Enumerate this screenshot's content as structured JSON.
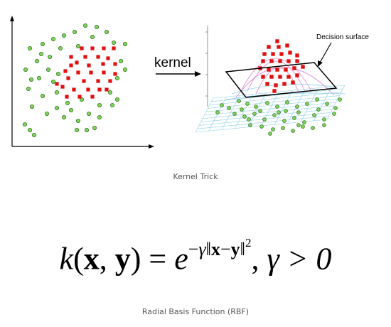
{
  "labels": {
    "kernel": "kernel",
    "decision_surface": "Decision surface"
  },
  "captions": {
    "kernel_trick": "Kernel Trick",
    "rbf": "Radial Basis Function (RBF)"
  },
  "formula": {
    "k": "k",
    "x": "x",
    "y": "y",
    "e": "e",
    "gamma": "γ",
    "exponent_power": "2",
    "condition": "γ > 0"
  },
  "colors": {
    "green_points": "#7ed957",
    "red_points": "#e01010",
    "surface_mesh": "#8fd0e8",
    "dome_mesh": "#e080d0",
    "axis": "#000000"
  },
  "icons": [
    "right-arrow-icon"
  ]
}
